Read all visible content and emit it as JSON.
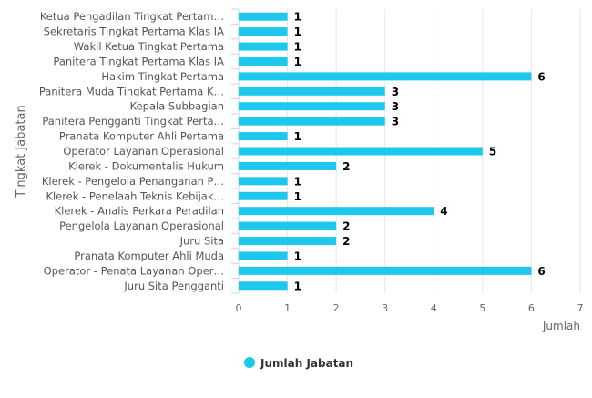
{
  "chart_data": {
    "type": "bar",
    "orientation": "horizontal",
    "categories": [
      "Ketua Pengadilan Tingkat Pertam…",
      "Sekretaris Tingkat Pertama Klas IA",
      "Wakil Ketua Tingkat Pertama",
      "Panitera Tingkat Pertama Klas IA",
      "Hakim Tingkat Pertama",
      "Panitera Muda Tingkat Pertama K…",
      "Kepala Subbagian",
      "Panitera Pengganti Tingkat Perta…",
      "Pranata Komputer Ahli Pertama",
      "Operator Layanan Operasional",
      "Klerek - Dokumentalis Hukum",
      "Klerek - Pengelola Penanganan P…",
      "Klerek - Penelaah Teknis Kebijak…",
      "Klerek - Analis Perkara Peradilan",
      "Pengelola Layanan Operasional",
      "Juru Sita",
      "Pranata Komputer Ahli Muda",
      "Operator - Penata Layanan Oper…",
      "Juru Sita Pengganti"
    ],
    "series": [
      {
        "name": "Jumlah Jabatan",
        "values": [
          1,
          1,
          1,
          1,
          6,
          3,
          3,
          3,
          1,
          5,
          2,
          1,
          1,
          4,
          2,
          2,
          1,
          6,
          1
        ],
        "color": "#1ec8ec"
      }
    ],
    "xlabel": "Jumlah",
    "ylabel": "Tingkat Jabatan",
    "xlim": [
      0,
      7
    ],
    "xticks": [
      "0",
      "1",
      "2",
      "3",
      "4",
      "5",
      "6",
      "7"
    ],
    "grid": true,
    "legend": "bottom-center"
  }
}
